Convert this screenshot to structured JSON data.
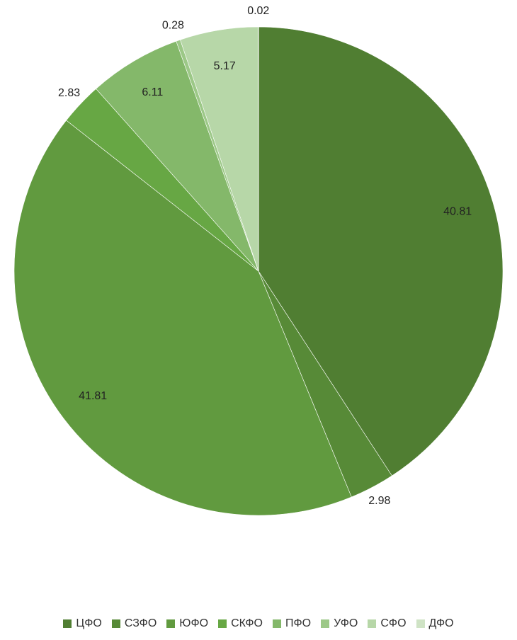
{
  "chart_data": {
    "type": "pie",
    "categories": [
      "ЦФО",
      "СЗФО",
      "ЮФО",
      "СКФО",
      "ПФО",
      "УФО",
      "СФО",
      "ДФО"
    ],
    "values": [
      40.81,
      2.98,
      41.81,
      2.83,
      6.11,
      0.28,
      5.17,
      0.02
    ],
    "colors": [
      "#507e32",
      "#578a37",
      "#619a3f",
      "#67a744",
      "#84b86a",
      "#9cc887",
      "#b7d7a8",
      "#cfe3c5"
    ],
    "legend": "bottom"
  }
}
